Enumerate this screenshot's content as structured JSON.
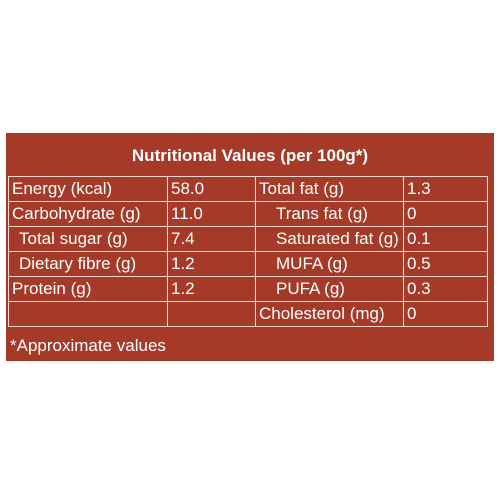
{
  "title": "Nutritional Values (per 100g*)",
  "colors": {
    "panel": "#a53a28",
    "text": "#ffffff",
    "rule": "#f3d9d2"
  },
  "left_rows": [
    {
      "label": "Energy (kcal)",
      "value": "58.0"
    },
    {
      "label": "Carbohydrate (g)",
      "value": "11.0"
    },
    {
      "label": "Total sugar (g)",
      "value": "7.4"
    },
    {
      "label": "Dietary fibre (g)",
      "value": "1.2"
    },
    {
      "label": "Protein (g)",
      "value": "1.2"
    },
    {
      "label": "",
      "value": ""
    }
  ],
  "right_rows": [
    {
      "label": "Total fat (g)",
      "value": "1.3"
    },
    {
      "label": "Trans fat (g)",
      "value": "0"
    },
    {
      "label": "Saturated fat (g)",
      "value": "0.1"
    },
    {
      "label": "MUFA (g)",
      "value": "0.5"
    },
    {
      "label": "PUFA (g)",
      "value": "0.3"
    },
    {
      "label": "Cholesterol (mg)",
      "value": "0"
    }
  ],
  "footnote": "*Approximate values"
}
